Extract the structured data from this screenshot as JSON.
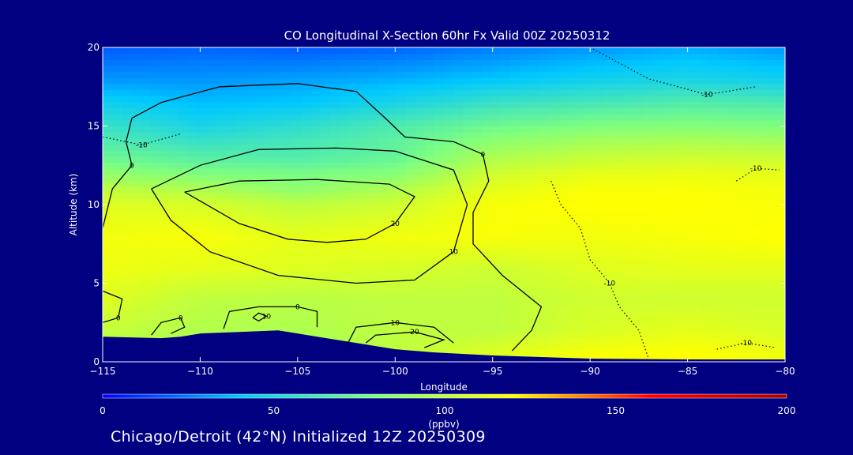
{
  "chart_data": {
    "type": "heatmap",
    "title": "CO Longitudinal X-Section 60hr  Fx Valid 00Z 20250312",
    "xlabel": "Longitude",
    "ylabel": "Altitude (km)",
    "xlim": [
      -115,
      -80
    ],
    "ylim": [
      0,
      20
    ],
    "xticks": [
      -115,
      -110,
      -105,
      -100,
      -95,
      -90,
      -85,
      -80
    ],
    "yticks": [
      0,
      5,
      10,
      15,
      20
    ],
    "colorbar": {
      "label": "(ppbv)",
      "range": [
        0,
        200
      ],
      "ticks": [
        0,
        50,
        100,
        150,
        200
      ],
      "stops": [
        "#0000ff",
        "#00c8ff",
        "#7fff7f",
        "#ffff00",
        "#ff0000",
        "#aa0000"
      ]
    },
    "field": {
      "altitudes": [
        20,
        18,
        16.5,
        15,
        14,
        13,
        12,
        11,
        10,
        8,
        6,
        4,
        2,
        0.5
      ],
      "longitudes": [
        -115,
        -110,
        -105,
        -100,
        -95,
        -90,
        -85,
        -80
      ],
      "ppbv": [
        [
          18,
          20,
          18,
          20,
          25,
          30,
          35,
          30
        ],
        [
          30,
          30,
          32,
          35,
          40,
          45,
          48,
          45
        ],
        [
          45,
          38,
          40,
          48,
          58,
          62,
          66,
          64
        ],
        [
          58,
          48,
          55,
          65,
          75,
          80,
          82,
          80
        ],
        [
          66,
          58,
          62,
          70,
          85,
          92,
          95,
          92
        ],
        [
          74,
          68,
          66,
          72,
          95,
          102,
          105,
          104
        ],
        [
          86,
          80,
          78,
          82,
          105,
          112,
          114,
          112
        ],
        [
          100,
          95,
          85,
          95,
          112,
          118,
          118,
          116
        ],
        [
          110,
          108,
          100,
          105,
          118,
          120,
          120,
          118
        ],
        [
          116,
          118,
          112,
          116,
          118,
          116,
          118,
          120
        ],
        [
          115,
          112,
          110,
          108,
          105,
          110,
          112,
          112
        ],
        [
          110,
          100,
          98,
          100,
          100,
          105,
          105,
          105
        ],
        [
          102,
          96,
          95,
          100,
          100,
          108,
          112,
          108
        ],
        [
          95,
          90,
          90,
          100,
          110,
          118,
          120,
          115
        ]
      ]
    },
    "terrain": {
      "longitude": [
        -115,
        -112,
        -111,
        -110,
        -108,
        -106,
        -104,
        -102,
        -100,
        -98,
        -95,
        -90,
        -85,
        -80
      ],
      "altitude_km": [
        1.6,
        1.5,
        1.6,
        1.8,
        1.9,
        2.0,
        1.6,
        1.2,
        0.8,
        0.6,
        0.4,
        0.2,
        0.15,
        0.15
      ]
    },
    "contours": [
      {
        "label": "0",
        "style": "solid",
        "points": [
          [
            -113.5,
            15.5
          ],
          [
            -112,
            16.5
          ],
          [
            -109,
            17.5
          ],
          [
            -105,
            17.7
          ],
          [
            -102,
            17.2
          ],
          [
            -100.5,
            15.5
          ],
          [
            -99.5,
            14.3
          ],
          [
            -97,
            14
          ],
          [
            -95.5,
            13.2
          ],
          [
            -95.2,
            11.5
          ],
          [
            -96,
            9.5
          ],
          [
            -96,
            7.5
          ],
          [
            -94.5,
            5.5
          ],
          [
            -92.5,
            3.5
          ],
          [
            -93,
            2
          ],
          [
            -94,
            0.7
          ]
        ]
      },
      {
        "label": "0",
        "style": "solid",
        "points": [
          [
            -113.5,
            15.5
          ],
          [
            -113.8,
            14
          ],
          [
            -113.5,
            12.5
          ],
          [
            -114.5,
            11
          ],
          [
            -115,
            8.5
          ]
        ]
      },
      {
        "label": "10",
        "style": "solid",
        "points": [
          [
            -112.5,
            11
          ],
          [
            -110,
            12.5
          ],
          [
            -107,
            13.5
          ],
          [
            -103,
            13.6
          ],
          [
            -100,
            13.4
          ],
          [
            -97,
            12.2
          ],
          [
            -96.3,
            10
          ],
          [
            -97,
            7
          ],
          [
            -99,
            5.2
          ],
          [
            -102,
            5
          ],
          [
            -106,
            5.5
          ],
          [
            -109.5,
            7
          ],
          [
            -111.5,
            9
          ],
          [
            -112.5,
            11
          ]
        ]
      },
      {
        "label": "20",
        "style": "solid",
        "points": [
          [
            -110.8,
            10.8
          ],
          [
            -108,
            11.5
          ],
          [
            -104,
            11.6
          ],
          [
            -100.3,
            11.3
          ],
          [
            -99,
            10.5
          ],
          [
            -100,
            8.8
          ],
          [
            -101.5,
            7.8
          ],
          [
            -103.5,
            7.6
          ],
          [
            -105.5,
            7.8
          ],
          [
            -108,
            8.8
          ],
          [
            -110.8,
            10.8
          ]
        ]
      },
      {
        "label": "0",
        "style": "solid",
        "points": [
          [
            -115,
            4.5
          ],
          [
            -114,
            4
          ],
          [
            -114.2,
            2.8
          ],
          [
            -115,
            2.5
          ]
        ]
      },
      {
        "label": "0",
        "style": "solid",
        "points": [
          [
            -112.5,
            1.7
          ],
          [
            -112,
            2.5
          ],
          [
            -111,
            2.8
          ],
          [
            -110.8,
            2.2
          ],
          [
            -111.5,
            1.8
          ]
        ]
      },
      {
        "label": "0",
        "style": "solid",
        "points": [
          [
            -108.8,
            2.1
          ],
          [
            -108.5,
            3.2
          ],
          [
            -107,
            3.5
          ],
          [
            -105,
            3.5
          ],
          [
            -104,
            3.2
          ],
          [
            -104,
            2.2
          ]
        ]
      },
      {
        "label": "10",
        "style": "solid",
        "points": [
          [
            -107.3,
            2.8
          ],
          [
            -107,
            3.1
          ],
          [
            -106.6,
            2.9
          ],
          [
            -107,
            2.6
          ],
          [
            -107.3,
            2.8
          ]
        ]
      },
      {
        "label": "10",
        "style": "solid",
        "points": [
          [
            -102.5,
            1
          ],
          [
            -102,
            2.2
          ],
          [
            -100,
            2.5
          ],
          [
            -98,
            2.2
          ],
          [
            -97,
            1.2
          ]
        ]
      },
      {
        "label": "20",
        "style": "solid",
        "points": [
          [
            -101.5,
            1.2
          ],
          [
            -101,
            1.7
          ],
          [
            -99,
            1.9
          ],
          [
            -97.5,
            1.4
          ],
          [
            -98.5,
            0.9
          ]
        ]
      },
      {
        "label": "-10",
        "style": "dotted",
        "points": [
          [
            -92,
            11.5
          ],
          [
            -91.5,
            10
          ],
          [
            -90.5,
            8.5
          ],
          [
            -90,
            6.5
          ],
          [
            -89,
            5
          ],
          [
            -88.5,
            3.5
          ],
          [
            -87.5,
            2
          ],
          [
            -87,
            0.2
          ]
        ]
      },
      {
        "label": "-10",
        "style": "dotted",
        "points": [
          [
            -90,
            20
          ],
          [
            -87,
            18
          ],
          [
            -84,
            17
          ],
          [
            -81.5,
            17.5
          ]
        ]
      },
      {
        "label": "-10",
        "style": "dotted",
        "points": [
          [
            -115,
            14.3
          ],
          [
            -113,
            13.8
          ],
          [
            -111,
            14.5
          ]
        ]
      },
      {
        "label": "-10",
        "style": "dotted",
        "points": [
          [
            -82.5,
            11.5
          ],
          [
            -81.5,
            12.3
          ],
          [
            -80.3,
            12.2
          ]
        ]
      },
      {
        "label": "-10",
        "style": "dotted",
        "points": [
          [
            -83.5,
            0.8
          ],
          [
            -82,
            1.2
          ],
          [
            -80.5,
            0.9
          ]
        ]
      }
    ]
  },
  "footer": "Chicago/Detroit (42°N) Initialized 12Z 20250309"
}
